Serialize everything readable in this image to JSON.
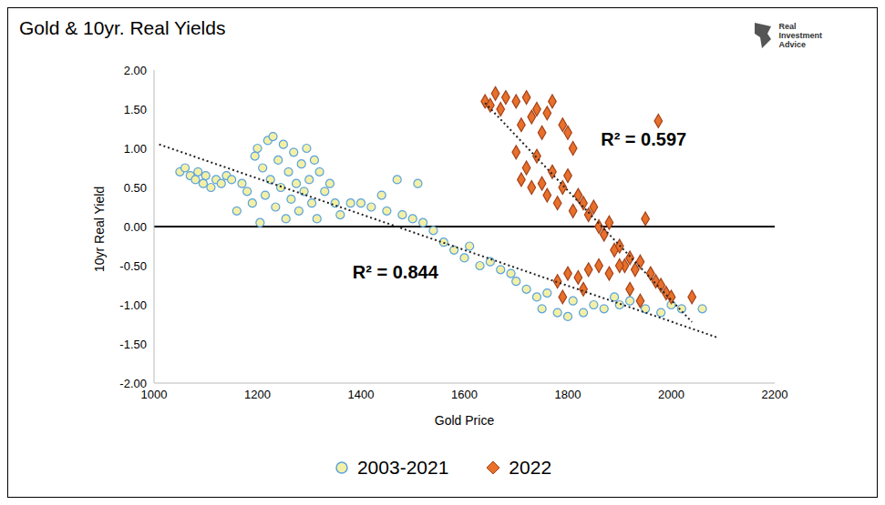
{
  "chart_data": {
    "type": "scatter",
    "title": "Gold & 10yr. Real Yields",
    "logo": [
      "Real",
      "Investment",
      "Advice"
    ],
    "x_label": "Gold Price",
    "y_label": "10yr Real Yield",
    "xlim": [
      1000,
      2200
    ],
    "xticks": [
      1000,
      1200,
      1400,
      1600,
      1800,
      2000,
      2200
    ],
    "ylim": [
      -2,
      2
    ],
    "yticks": [
      {
        "value": 2,
        "label": "2.00"
      },
      {
        "value": 1.5,
        "label": "1.50"
      },
      {
        "value": 1,
        "label": "1.00"
      },
      {
        "value": 0.5,
        "label": "0.50"
      },
      {
        "value": 0,
        "label": "0.00"
      },
      {
        "value": -0.5,
        "label": "-0.50"
      },
      {
        "value": -1,
        "label": "-1.00"
      },
      {
        "value": -1.5,
        "label": "-1.50"
      },
      {
        "value": -2,
        "label": "-2.00"
      }
    ],
    "grid": false,
    "legend": "bottom",
    "zero_line": 0,
    "series": [
      {
        "name": "2003-2021",
        "color": "#f3f0a6",
        "marker": "circle",
        "x": [
          1050,
          1060,
          1070,
          1080,
          1085,
          1095,
          1100,
          1110,
          1120,
          1130,
          1140,
          1150,
          1160,
          1170,
          1180,
          1190,
          1195,
          1200,
          1205,
          1210,
          1215,
          1220,
          1225,
          1230,
          1235,
          1240,
          1245,
          1250,
          1255,
          1260,
          1265,
          1270,
          1275,
          1280,
          1285,
          1290,
          1295,
          1300,
          1305,
          1310,
          1315,
          1320,
          1330,
          1340,
          1350,
          1360,
          1380,
          1400,
          1420,
          1440,
          1450,
          1470,
          1480,
          1500,
          1510,
          1520,
          1540,
          1560,
          1580,
          1600,
          1610,
          1630,
          1650,
          1670,
          1690,
          1700,
          1720,
          1740,
          1750,
          1760,
          1780,
          1800,
          1810,
          1830,
          1850,
          1870,
          1890,
          1900,
          1920,
          1950,
          1980,
          2000,
          2020,
          2060
        ],
        "y": [
          0.7,
          0.75,
          0.65,
          0.6,
          0.7,
          0.55,
          0.65,
          0.5,
          0.6,
          0.55,
          0.65,
          0.6,
          0.2,
          0.55,
          0.45,
          0.3,
          0.9,
          1.0,
          0.05,
          0.75,
          0.4,
          1.1,
          0.6,
          1.15,
          0.25,
          0.85,
          0.5,
          1.05,
          0.1,
          0.7,
          0.35,
          0.95,
          0.55,
          0.2,
          0.8,
          0.45,
          1.0,
          0.6,
          0.3,
          0.85,
          0.1,
          0.7,
          0.45,
          0.55,
          0.3,
          0.15,
          0.3,
          0.3,
          0.25,
          0.4,
          0.2,
          0.6,
          0.15,
          0.1,
          0.55,
          0.05,
          -0.05,
          -0.2,
          -0.3,
          -0.4,
          -0.25,
          -0.5,
          -0.45,
          -0.55,
          -0.6,
          -0.7,
          -0.8,
          -0.9,
          -1.05,
          -0.85,
          -1.1,
          -1.15,
          -0.95,
          -1.1,
          -1.0,
          -1.05,
          -0.9,
          -1.0,
          -0.95,
          -1.05,
          -1.1,
          -1.0,
          -1.05,
          -1.05
        ]
      },
      {
        "name": "2022",
        "color": "#e8702a",
        "marker": "diamond",
        "x": [
          1640,
          1650,
          1660,
          1670,
          1680,
          1700,
          1710,
          1720,
          1730,
          1740,
          1750,
          1760,
          1770,
          1790,
          1800,
          1810,
          1700,
          1710,
          1720,
          1730,
          1740,
          1750,
          1760,
          1770,
          1780,
          1790,
          1800,
          1810,
          1820,
          1830,
          1840,
          1850,
          1860,
          1870,
          1880,
          1890,
          1900,
          1910,
          1920,
          1930,
          1940,
          1950,
          1960,
          1970,
          1975,
          1980,
          1990,
          2000,
          2040,
          1780,
          1790,
          1800,
          1820,
          1840,
          1860,
          1880,
          1900,
          1920,
          1940,
          1830
        ],
        "y": [
          1.6,
          1.55,
          1.7,
          1.5,
          1.65,
          1.6,
          1.3,
          1.65,
          1.4,
          1.5,
          1.2,
          1.45,
          1.6,
          1.3,
          1.2,
          1.0,
          0.95,
          0.6,
          0.75,
          0.5,
          0.9,
          0.55,
          0.4,
          0.7,
          0.3,
          0.5,
          0.65,
          0.2,
          0.4,
          0.3,
          0.15,
          0.25,
          0.0,
          -0.1,
          0.05,
          -0.3,
          -0.25,
          -0.5,
          -0.4,
          -0.55,
          -0.45,
          0.1,
          -0.6,
          -0.7,
          1.35,
          -0.75,
          -0.85,
          -0.9,
          -0.9,
          -0.7,
          -0.9,
          -0.6,
          -0.65,
          -0.55,
          -0.5,
          -0.6,
          -0.5,
          -0.8,
          -0.95,
          -0.8
        ]
      }
    ],
    "trendlines": [
      {
        "x": [
          1010,
          2090
        ],
        "y": [
          1.05,
          -1.42
        ],
        "line_style": "dotted"
      },
      {
        "x": [
          1640,
          2040
        ],
        "y": [
          1.58,
          -1.22
        ],
        "line_style": "dotted"
      }
    ],
    "annotations": [
      {
        "text": "R² = 0.597",
        "x": 1855,
        "y": 1.12
      },
      {
        "text": "R² = 0.844",
        "x": 1375,
        "y": -0.58
      }
    ]
  }
}
